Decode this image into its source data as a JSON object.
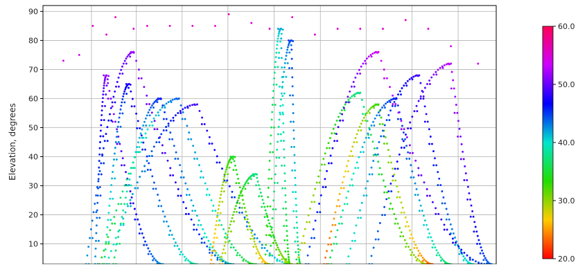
{
  "chart_data": {
    "type": "scatter",
    "title": "",
    "xlabel": "",
    "ylabel": "Elevation, degrees",
    "ylim": [
      3,
      92
    ],
    "y_ticks": [
      10,
      20,
      30,
      40,
      50,
      60,
      70,
      80,
      90
    ],
    "grid": true,
    "colorbar": {
      "min": 20.0,
      "max": 60.0,
      "ticks": [
        20.0,
        30.0,
        40.0,
        50.0,
        60.0
      ],
      "tick_labels": [
        "20.0",
        "30.0",
        "40.0",
        "50.0",
        "60.0"
      ],
      "colormap": "gist_rainbow",
      "gradient": [
        "#ff0000",
        "#ffcc00",
        "#22dd00",
        "#00e5cc",
        "#0000ff",
        "#cc00ff",
        "#ff0055"
      ]
    },
    "tracks": [
      {
        "name": "",
        "value": 52,
        "start_x": 0.115,
        "end_x": 0.265,
        "peak_x": 0.14,
        "min_el": 3,
        "max_el": 68
      },
      {
        "name": "",
        "value": 48,
        "start_x": 0.135,
        "end_x": 0.34,
        "peak_x": 0.19,
        "min_el": 3,
        "max_el": 65
      },
      {
        "name": "",
        "value": 46,
        "start_x": 0.155,
        "end_x": 0.42,
        "peak_x": 0.26,
        "min_el": 3,
        "max_el": 60
      },
      {
        "name": "",
        "value": 44,
        "start_x": 0.125,
        "end_x": 0.47,
        "peak_x": 0.3,
        "min_el": 3,
        "max_el": 60
      },
      {
        "name": "",
        "value": 49,
        "start_x": 0.14,
        "end_x": 0.55,
        "peak_x": 0.34,
        "min_el": 3,
        "max_el": 58
      },
      {
        "name": "",
        "value": 52,
        "start_x": 0.095,
        "end_x": 0.42,
        "peak_x": 0.2,
        "min_el": 3,
        "max_el": 76
      },
      {
        "name": "",
        "value": 38,
        "start_x": 0.39,
        "end_x": 0.55,
        "peak_x": 0.47,
        "min_el": 3,
        "max_el": 34
      },
      {
        "name": "",
        "value": 35,
        "start_x": 0.37,
        "end_x": 0.5,
        "peak_x": 0.42,
        "min_el": 3,
        "max_el": 40
      },
      {
        "name": "",
        "value": 42,
        "start_x": 0.49,
        "end_x": 0.54,
        "peak_x": 0.525,
        "min_el": 3,
        "max_el": 84
      },
      {
        "name": "",
        "value": 45,
        "start_x": 0.5,
        "end_x": 0.56,
        "peak_x": 0.548,
        "min_el": 3,
        "max_el": 80
      },
      {
        "name": "",
        "value": 38,
        "start_x": 0.56,
        "end_x": 0.85,
        "peak_x": 0.7,
        "min_el": 3,
        "max_el": 62
      },
      {
        "name": "",
        "value": 33,
        "start_x": 0.62,
        "end_x": 0.86,
        "peak_x": 0.74,
        "min_el": 3,
        "max_el": 58
      },
      {
        "name": "",
        "value": 46,
        "start_x": 0.63,
        "end_x": 0.9,
        "peak_x": 0.78,
        "min_el": 3,
        "max_el": 60
      },
      {
        "name": "",
        "value": 49,
        "start_x": 0.67,
        "end_x": 0.95,
        "peak_x": 0.83,
        "min_el": 3,
        "max_el": 68
      },
      {
        "name": "",
        "value": 53,
        "start_x": 0.72,
        "end_x": 0.99,
        "peak_x": 0.9,
        "min_el": 3,
        "max_el": 72
      },
      {
        "name": "",
        "value": 54,
        "start_x": 0.58,
        "end_x": 0.98,
        "peak_x": 0.74,
        "min_el": 3,
        "max_el": 76
      }
    ],
    "top_points": [
      {
        "x": 0.045,
        "y": 73,
        "value": 54
      },
      {
        "x": 0.08,
        "y": 75,
        "value": 54
      },
      {
        "x": 0.11,
        "y": 85,
        "value": 55
      },
      {
        "x": 0.14,
        "y": 82,
        "value": 55
      },
      {
        "x": 0.16,
        "y": 88,
        "value": 56
      },
      {
        "x": 0.2,
        "y": 84,
        "value": 55
      },
      {
        "x": 0.23,
        "y": 85,
        "value": 55
      },
      {
        "x": 0.28,
        "y": 85,
        "value": 55
      },
      {
        "x": 0.33,
        "y": 85,
        "value": 55
      },
      {
        "x": 0.38,
        "y": 85,
        "value": 55
      },
      {
        "x": 0.41,
        "y": 89,
        "value": 56
      },
      {
        "x": 0.46,
        "y": 86,
        "value": 55
      },
      {
        "x": 0.5,
        "y": 84,
        "value": 55
      },
      {
        "x": 0.55,
        "y": 88,
        "value": 56
      },
      {
        "x": 0.6,
        "y": 82,
        "value": 55
      },
      {
        "x": 0.65,
        "y": 84,
        "value": 55
      },
      {
        "x": 0.7,
        "y": 84,
        "value": 55
      },
      {
        "x": 0.75,
        "y": 84,
        "value": 55
      },
      {
        "x": 0.8,
        "y": 87,
        "value": 56
      },
      {
        "x": 0.85,
        "y": 84,
        "value": 55
      },
      {
        "x": 0.9,
        "y": 78,
        "value": 54
      },
      {
        "x": 0.96,
        "y": 72,
        "value": 54
      }
    ]
  }
}
